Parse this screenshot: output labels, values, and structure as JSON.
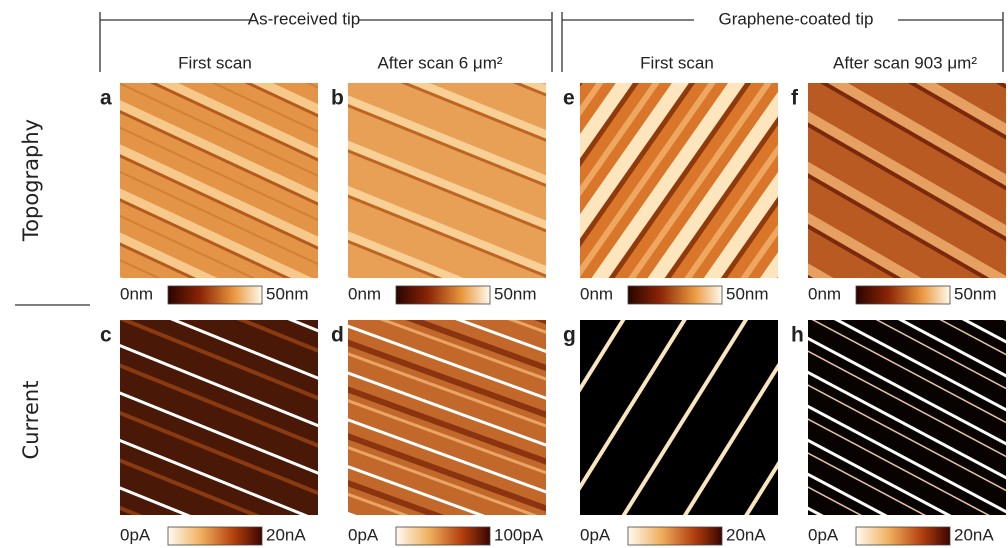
{
  "headers": {
    "left": "As-received tip",
    "right": "Graphene-coated tip"
  },
  "columns": [
    "First scan",
    "After scan 6 μm²",
    "First scan",
    "After scan 903 μm²"
  ],
  "rows": [
    "Topography",
    "Current"
  ],
  "panels": [
    {
      "letter": "a",
      "scale_min": "0nm",
      "scale_max": "50nm"
    },
    {
      "letter": "b",
      "scale_min": "0nm",
      "scale_max": "50nm"
    },
    {
      "letter": "e",
      "scale_min": "0nm",
      "scale_max": "50nm"
    },
    {
      "letter": "f",
      "scale_min": "0nm",
      "scale_max": "50nm"
    },
    {
      "letter": "c",
      "scale_min": "0pA",
      "scale_max": "20nA"
    },
    {
      "letter": "d",
      "scale_min": "0pA",
      "scale_max": "100pA"
    },
    {
      "letter": "g",
      "scale_min": "0pA",
      "scale_max": "20nA"
    },
    {
      "letter": "h",
      "scale_min": "0pA",
      "scale_max": "20nA"
    }
  ]
}
